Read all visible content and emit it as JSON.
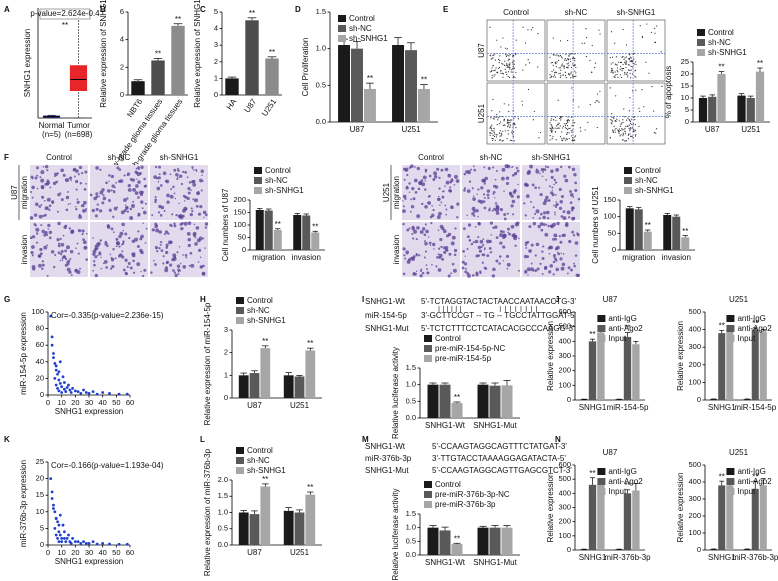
{
  "micrographs": [
    {
      "columns": [
        "Control",
        "sh-NC",
        "sh-SNHG1"
      ],
      "rows": [
        "U87",
        "U251"
      ],
      "style": "flow"
    },
    {
      "columns": [
        "Control",
        "sh-NC",
        "sh-SNHG1"
      ],
      "group": "U87",
      "rows": [
        "migration",
        "invasion"
      ],
      "style": "stain"
    },
    {
      "columns": [
        "Control",
        "sh-NC",
        "sh-SNHG1"
      ],
      "group": "U251",
      "rows": [
        "migration",
        "invasion"
      ],
      "style": "stain"
    }
  ],
  "alignments": [
    {
      "rows": [
        {
          "name": "SNHG1-Wt",
          "seq": "5'-TCTAGGTACTACTAACCAATAACCTG-3'"
        },
        {
          "name": "miR-154-5p",
          "seq": "3'-GCTTCCGT -- TG -- TGCCTATTGGAT-5'"
        },
        {
          "name": "SNHG1-Mut",
          "seq": "5'-TCTCTTTCCTCATACACGCCCAAGG-3'"
        }
      ]
    },
    {
      "rows": [
        {
          "name": "SNHG1-Wt",
          "seq": "5'-CCAAGTAGGCAGTTTCTATGAT-3'"
        },
        {
          "name": "miR-376b-3p",
          "seq": "3'-TTGTACCTAAAAGGAGATACTA-5'"
        },
        {
          "name": "SNHG1-Mut",
          "seq": "5'-CCAAGTAGGCAGTTGAGCGTCT-3'"
        }
      ]
    }
  ],
  "chart_data": [
    {
      "type": "box",
      "label": "A",
      "title": "p-value=2.624e-0.4",
      "note": "**",
      "ylabel": "SNHG1 expression",
      "categories": [
        "Normal",
        "Tumor"
      ],
      "sublabels": [
        "(n=5)",
        "(n=698)"
      ],
      "colors": [
        "#2b2b9a",
        "#e8262a"
      ],
      "boxes": [
        {
          "min": 0,
          "q1": 0.3,
          "median": 0.5,
          "q3": 0.7,
          "max": 1
        },
        {
          "min": 0,
          "q1": 10,
          "median": 14,
          "q3": 19,
          "max": 38
        }
      ],
      "ylim": [
        0,
        40
      ]
    },
    {
      "type": "bar",
      "label": "B",
      "ylabel": "Relative expression of SNHG1",
      "categories": [
        "NBT6",
        "Low-grade glioma tissues",
        "High-grade glioma tissues"
      ],
      "values": [
        1,
        2.5,
        5
      ],
      "errors": [
        0.1,
        0.15,
        0.15
      ],
      "significance": [
        null,
        "**",
        "**"
      ],
      "colors": [
        "#1a1a1a",
        "#4d4d4d",
        "#8c8c8c"
      ],
      "ylim": [
        0,
        6
      ],
      "yticks": [
        0,
        2,
        4,
        6
      ]
    },
    {
      "type": "bar",
      "label": "C",
      "ylabel": "Relative expression of SNHG1",
      "categories": [
        "HA",
        "U87",
        "U251"
      ],
      "values": [
        1,
        4.5,
        2.2
      ],
      "errors": [
        0.08,
        0.15,
        0.1
      ],
      "significance": [
        null,
        "**",
        "**"
      ],
      "colors": [
        "#1a1a1a",
        "#4d4d4d",
        "#8c8c8c"
      ],
      "ylim": [
        0,
        5
      ],
      "yticks": [
        0,
        1,
        2,
        3,
        4,
        5
      ]
    },
    {
      "type": "bar",
      "label": "D",
      "ylabel": "Cell Proliferation",
      "categories": [
        "U87",
        "U251"
      ],
      "legend": "top-left",
      "series": [
        {
          "name": "Control",
          "color": "#1a1a1a",
          "values": [
            1.05,
            1.05
          ],
          "errors": [
            0.08,
            0.1
          ]
        },
        {
          "name": "sh-NC",
          "color": "#595959",
          "values": [
            1.0,
            0.98
          ],
          "errors": [
            0.1,
            0.1
          ]
        },
        {
          "name": "sh-SNHG1",
          "color": "#a6a6a6",
          "values": [
            0.45,
            0.45
          ],
          "errors": [
            0.08,
            0.06
          ],
          "significance": [
            "**",
            "**"
          ]
        }
      ],
      "ylim": [
        0,
        1.5
      ],
      "yticks": [
        {
          "value": 0,
          "label": "0.0"
        },
        0.5,
        {
          "value": 1,
          "label": "1.0"
        },
        1.5
      ]
    },
    {
      "type": "bar",
      "label": "E",
      "ylabel": "% of apoptosis",
      "categories": [
        "U87",
        "U251"
      ],
      "legend": "above",
      "series": [
        {
          "name": "Control",
          "color": "#1a1a1a",
          "values": [
            10,
            11
          ],
          "errors": [
            0.8,
            0.8
          ]
        },
        {
          "name": "sh-NC",
          "color": "#595959",
          "values": [
            10.5,
            10
          ],
          "errors": [
            0.8,
            0.8
          ]
        },
        {
          "name": "sh-SNHG1",
          "color": "#a6a6a6",
          "values": [
            20,
            21
          ],
          "errors": [
            1,
            1.5
          ],
          "significance": [
            "**",
            "**"
          ]
        }
      ],
      "ylim": [
        0,
        25
      ],
      "yticks": [
        0,
        5,
        10,
        15,
        20,
        25
      ]
    },
    {
      "type": "bar",
      "label": "F",
      "ylabel": "Cell numbers of U87",
      "categories": [
        "migration",
        "invasion"
      ],
      "legend": "above",
      "series": [
        {
          "name": "Control",
          "color": "#1a1a1a",
          "values": [
            160,
            140
          ],
          "errors": [
            6,
            6
          ]
        },
        {
          "name": "sh-NC",
          "color": "#595959",
          "values": [
            158,
            138
          ],
          "errors": [
            6,
            6
          ]
        },
        {
          "name": "sh-SNHG1",
          "color": "#a6a6a6",
          "values": [
            80,
            70
          ],
          "errors": [
            5,
            5
          ],
          "significance": [
            "**",
            "**"
          ]
        }
      ],
      "ylim": [
        0,
        200
      ],
      "yticks": [
        0,
        50,
        100,
        150,
        200
      ]
    },
    {
      "type": "bar",
      "ylabel": "Cell numbers of U251",
      "categories": [
        "migration",
        "invasion"
      ],
      "legend": "above",
      "series": [
        {
          "name": "Control",
          "color": "#1a1a1a",
          "values": [
            125,
            105
          ],
          "errors": [
            5,
            5
          ]
        },
        {
          "name": "sh-NC",
          "color": "#595959",
          "values": [
            122,
            100
          ],
          "errors": [
            5,
            5
          ]
        },
        {
          "name": "sh-SNHG1",
          "color": "#a6a6a6",
          "values": [
            55,
            38
          ],
          "errors": [
            5,
            5
          ],
          "significance": [
            "**",
            "**"
          ]
        }
      ],
      "ylim": [
        0,
        150
      ],
      "yticks": [
        0,
        50,
        100,
        150
      ]
    },
    {
      "type": "scatter",
      "label": "G",
      "title": "Cor=-0.335(p-value=2.236e-15)",
      "xlabel": "SNHG1 expression",
      "ylabel": "miR-154-5p expression",
      "color": "#1f3fcf",
      "x": [
        2,
        3,
        4,
        5,
        5,
        6,
        6,
        7,
        7,
        8,
        8,
        9,
        9,
        10,
        10,
        11,
        12,
        12,
        13,
        14,
        15,
        16,
        17,
        18,
        20,
        22,
        24,
        26,
        28,
        30,
        33,
        36,
        40,
        45,
        52,
        58,
        3,
        4,
        6,
        8
      ],
      "values": [
        95,
        60,
        45,
        38,
        20,
        30,
        12,
        25,
        8,
        18,
        5,
        14,
        40,
        10,
        3,
        22,
        7,
        15,
        4,
        9,
        12,
        6,
        3,
        8,
        5,
        4,
        2,
        6,
        3,
        2,
        4,
        1,
        3,
        2,
        1,
        1,
        70,
        50,
        35,
        28
      ],
      "xlim": [
        0,
        60
      ],
      "xticks": [
        0,
        10,
        20,
        30,
        40,
        50,
        60
      ],
      "ylim": [
        0,
        100
      ],
      "yticks": [
        0,
        20,
        40,
        60,
        80,
        100
      ]
    },
    {
      "type": "bar",
      "label": "H",
      "ylabel": "Relative expression of miR-154-5p",
      "categories": [
        "U87",
        "U251"
      ],
      "legend": "above",
      "series": [
        {
          "name": "Control",
          "color": "#1a1a1a",
          "values": [
            1.0,
            1.0
          ],
          "errors": [
            0.1,
            0.12
          ]
        },
        {
          "name": "sh-NC",
          "color": "#595959",
          "values": [
            1.1,
            0.95
          ],
          "errors": [
            0.1,
            0.05
          ]
        },
        {
          "name": "sh-SNHG1",
          "color": "#a6a6a6",
          "values": [
            2.2,
            2.1
          ],
          "errors": [
            0.1,
            0.1
          ],
          "significance": [
            "**",
            "**"
          ]
        }
      ],
      "ylim": [
        0,
        3
      ],
      "yticks": [
        0,
        1,
        2,
        3
      ]
    },
    {
      "type": "bar",
      "label": "I",
      "ylabel": "Relative luciferase activity",
      "categories": [
        "SNHG1-Wt",
        "SNHG1-Mut"
      ],
      "legend": "above",
      "series": [
        {
          "name": "Control",
          "color": "#1a1a1a",
          "values": [
            1.0,
            1.0
          ],
          "errors": [
            0.05,
            0.05
          ]
        },
        {
          "name": "pre-miR-154-5p-NC",
          "color": "#595959",
          "values": [
            1.0,
            0.97
          ],
          "errors": [
            0.05,
            0.08
          ]
        },
        {
          "name": "pre-miR-154-5p",
          "color": "#a6a6a6",
          "values": [
            0.45,
            0.98
          ],
          "errors": [
            0.03,
            0.15
          ],
          "significance": [
            "**",
            null
          ]
        }
      ],
      "ylim": [
        0,
        1.5
      ],
      "yticks": [
        {
          "value": 0,
          "label": "0.0"
        },
        0.5,
        {
          "value": 1,
          "label": "1.0"
        },
        1.5
      ]
    },
    {
      "type": "bar",
      "label": "J",
      "title": "U87",
      "ylabel": "Relative expression",
      "categories": [
        "SNHG1",
        "miR-154-5p"
      ],
      "legend": "top-right",
      "series": [
        {
          "name": "anti-IgG",
          "color": "#1a1a1a",
          "values": [
            5,
            5
          ],
          "errors": [
            1,
            1
          ]
        },
        {
          "name": "anti-Ago2",
          "color": "#595959",
          "values": [
            400,
            430
          ],
          "errors": [
            15,
            30
          ],
          "significance": [
            "**",
            "**"
          ]
        },
        {
          "name": "Input",
          "color": "#a6a6a6",
          "values": [
            460,
            380
          ],
          "errors": [
            25,
            20
          ]
        }
      ],
      "ylim": [
        0,
        600
      ],
      "yticks": [
        0,
        100,
        200,
        300,
        400,
        500,
        600
      ]
    },
    {
      "type": "bar",
      "title": "U251",
      "ylabel": "Relative expression",
      "categories": [
        "SNHG1",
        "miR-154-5p"
      ],
      "legend": "top-right",
      "series": [
        {
          "name": "anti-IgG",
          "color": "#1a1a1a",
          "values": [
            5,
            5
          ],
          "errors": [
            1,
            1
          ]
        },
        {
          "name": "anti-Ago2",
          "color": "#595959",
          "values": [
            380,
            400
          ],
          "errors": [
            15,
            10
          ],
          "significance": [
            "**",
            "**"
          ]
        },
        {
          "name": "Input",
          "color": "#a6a6a6",
          "values": [
            400,
            390
          ],
          "errors": [
            10,
            10
          ]
        }
      ],
      "ylim": [
        0,
        500
      ],
      "yticks": [
        0,
        100,
        200,
        300,
        400,
        500
      ]
    },
    {
      "type": "scatter",
      "label": "K",
      "title": "Cor=-0.166(p-value=1.193e-04)",
      "xlabel": "SNHG1 expression",
      "ylabel": "miR-376b-3p expression",
      "color": "#1f3fcf",
      "x": [
        2,
        3,
        4,
        5,
        5,
        6,
        6,
        7,
        7,
        8,
        8,
        9,
        9,
        10,
        10,
        11,
        12,
        12,
        13,
        14,
        15,
        16,
        17,
        18,
        20,
        22,
        24,
        26,
        28,
        30,
        33,
        36,
        40,
        45,
        52,
        58,
        3,
        4,
        6,
        8
      ],
      "values": [
        20,
        14,
        12,
        10,
        5,
        8,
        3,
        7,
        2,
        4,
        1,
        3,
        9,
        2,
        1,
        6,
        2,
        4,
        1,
        2,
        3,
        1,
        0.5,
        2,
        1,
        1,
        0.5,
        1,
        0.5,
        0.5,
        1,
        0.3,
        0.5,
        0.3,
        0.2,
        0.2,
        16,
        11,
        8,
        6
      ],
      "xlim": [
        0,
        60
      ],
      "xticks": [
        0,
        10,
        20,
        30,
        40,
        50,
        60
      ],
      "ylim": [
        0,
        25
      ],
      "yticks": [
        0,
        5,
        10,
        15,
        20,
        25
      ]
    },
    {
      "type": "bar",
      "label": "L",
      "ylabel": "Relative expression of miR-376b-3p",
      "categories": [
        "U87",
        "U251"
      ],
      "legend": "above",
      "series": [
        {
          "name": "Control",
          "color": "#1a1a1a",
          "values": [
            1.0,
            1.05
          ],
          "errors": [
            0.06,
            0.1
          ]
        },
        {
          "name": "sh-NC",
          "color": "#595959",
          "values": [
            0.95,
            1.0
          ],
          "errors": [
            0.1,
            0.08
          ]
        },
        {
          "name": "sh-SNHG1",
          "color": "#a6a6a6",
          "values": [
            1.8,
            1.55
          ],
          "errors": [
            0.08,
            0.08
          ],
          "significance": [
            "**",
            "**"
          ]
        }
      ],
      "ylim": [
        0,
        2
      ],
      "yticks": [
        {
          "value": 0,
          "label": "0.0"
        },
        0.5,
        {
          "value": 1,
          "label": "1.0"
        },
        1.5,
        {
          "value": 2,
          "label": "2.0"
        }
      ]
    },
    {
      "type": "bar",
      "label": "M",
      "ylabel": "Relative luciferase activity",
      "categories": [
        "SNHG1-Wt",
        "SNHG1-Mut"
      ],
      "legend": "above",
      "series": [
        {
          "name": "Control",
          "color": "#1a1a1a",
          "values": [
            1.0,
            1.0
          ],
          "errors": [
            0.08,
            0.05
          ]
        },
        {
          "name": "pre-miR-376b-3p-NC",
          "color": "#595959",
          "values": [
            0.9,
            1.0
          ],
          "errors": [
            0.12,
            0.08
          ]
        },
        {
          "name": "pre-miR-376b-3p",
          "color": "#a6a6a6",
          "values": [
            0.4,
            1.0
          ],
          "errors": [
            0.03,
            0.08
          ],
          "significance": [
            "**",
            null
          ]
        }
      ],
      "ylim": [
        0,
        1.5
      ],
      "yticks": [
        {
          "value": 0,
          "label": "0.0"
        },
        0.5,
        {
          "value": 1,
          "label": "1.0"
        },
        1.5
      ]
    },
    {
      "type": "bar",
      "label": "N",
      "title": "U87",
      "ylabel": "Relative expression",
      "categories": [
        "SNHG1",
        "miR-376b-3p"
      ],
      "legend": "top-right",
      "series": [
        {
          "name": "anti-IgG",
          "color": "#1a1a1a",
          "values": [
            5,
            5
          ],
          "errors": [
            1,
            1
          ]
        },
        {
          "name": "anti-Ago2",
          "color": "#595959",
          "values": [
            460,
            400
          ],
          "errors": [
            50,
            25
          ],
          "significance": [
            "**",
            "**"
          ]
        },
        {
          "name": "Input",
          "color": "#a6a6a6",
          "values": [
            460,
            420
          ],
          "errors": [
            30,
            50
          ]
        }
      ],
      "ylim": [
        0,
        600
      ],
      "yticks": [
        0,
        100,
        200,
        300,
        400,
        500,
        600
      ]
    },
    {
      "type": "bar",
      "title": "U251",
      "ylabel": "Relative expression",
      "categories": [
        "SNHG1",
        "miR-376b-3p"
      ],
      "legend": "top-right",
      "series": [
        {
          "name": "anti-IgG",
          "color": "#1a1a1a",
          "values": [
            5,
            5
          ],
          "errors": [
            1,
            1
          ]
        },
        {
          "name": "anti-Ago2",
          "color": "#595959",
          "values": [
            380,
            360
          ],
          "errors": [
            25,
            45
          ],
          "significance": [
            "**",
            "**"
          ]
        },
        {
          "name": "Input",
          "color": "#a6a6a6",
          "values": [
            380,
            380
          ],
          "errors": [
            20,
            40
          ]
        }
      ],
      "ylim": [
        0,
        500
      ],
      "yticks": [
        0,
        100,
        200,
        300,
        400,
        500
      ]
    }
  ]
}
